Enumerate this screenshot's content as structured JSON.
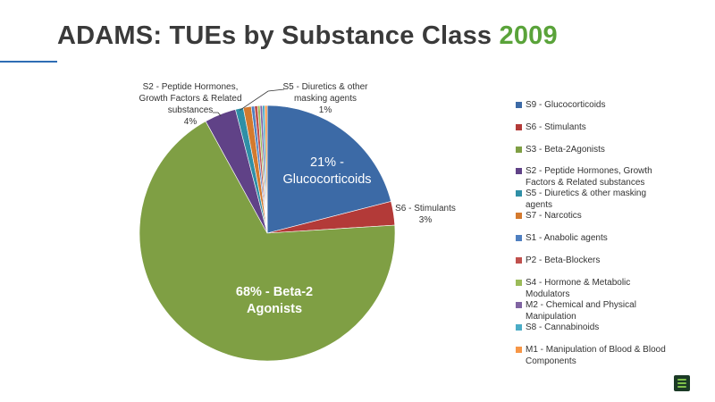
{
  "header": {
    "title_main": "ADAMS: TUEs by Substance Class",
    "title_year": "2009"
  },
  "colors": {
    "accent_green": "#5aa33a",
    "rule_blue": "#2e6db4"
  },
  "chart_data": {
    "type": "pie",
    "title": "ADAMS: TUEs by Substance Class 2009",
    "start_angle_deg": 0,
    "direction": "clockwise",
    "legend_position": "right",
    "slices": [
      {
        "name": "S9 - Glucocorticoids",
        "value": 21,
        "color": "#3c6aa6",
        "label_lines": [
          "21% -",
          "Glucocorticoids"
        ],
        "label_style": "inside"
      },
      {
        "name": "S6 - Stimulants",
        "value": 3,
        "color": "#b33a38",
        "label_lines": [
          "S6 - Stimulants",
          "3%"
        ],
        "label_style": "outside"
      },
      {
        "name": "S3 - Beta-2Agonists",
        "value": 68,
        "color": "#7f9f44",
        "label_lines": [
          "68% - Beta-2",
          "Agonists"
        ],
        "label_style": "inside"
      },
      {
        "name": "S2 - Peptide Hormones, Growth Factors & Related substances",
        "value": 4,
        "color": "#604287",
        "label_lines": [
          "S2 - Peptide Hormones,",
          "Growth Factors & Related",
          "substances",
          "4%"
        ],
        "label_style": "outside"
      },
      {
        "name": "S5 - Diuretics & other masking agents",
        "value": 1,
        "color": "#2f8fa6",
        "label_lines": [
          "S5 - Diuretics & other",
          "masking agents",
          "1%"
        ],
        "label_style": "outside"
      },
      {
        "name": "S7 - Narcotics",
        "value": 1,
        "color": "#d47a2e",
        "label_lines": [],
        "label_style": "none"
      },
      {
        "name": "S1 - Anabolic agents",
        "value": 0.4,
        "color": "#4f7fc0",
        "label_lines": [],
        "label_style": "none"
      },
      {
        "name": "P2 - Beta-Blockers",
        "value": 0.4,
        "color": "#c0504d",
        "label_lines": [],
        "label_style": "none"
      },
      {
        "name": "S4 - Hormone & Metabolic Modulators",
        "value": 0.3,
        "color": "#9bbb59",
        "label_lines": [],
        "label_style": "none"
      },
      {
        "name": "M2 - Chemical and Physical Manipulation",
        "value": 0.3,
        "color": "#8064a2",
        "label_lines": [],
        "label_style": "none"
      },
      {
        "name": "S8 - Cannabinoids",
        "value": 0.3,
        "color": "#4bacc6",
        "label_lines": [],
        "label_style": "none"
      },
      {
        "name": "M1 - Manipulation of Blood & Blood Components",
        "value": 0.3,
        "color": "#f79646",
        "label_lines": [],
        "label_style": "none"
      }
    ]
  }
}
